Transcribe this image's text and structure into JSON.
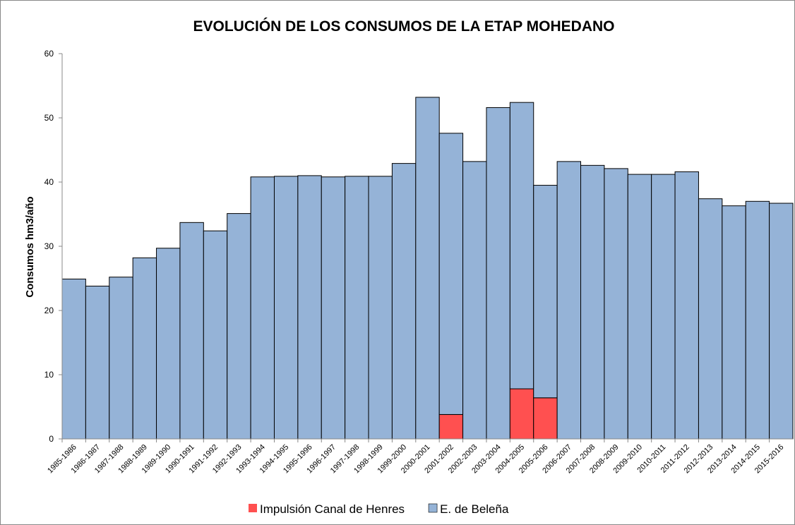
{
  "chart_data": {
    "type": "stacked_bar",
    "title": "EVOLUCIÓN DE LOS CONSUMOS DE LA ETAP MOHEDANO",
    "y_label": "Consumos hm3/año",
    "categories": [
      "1985-1986",
      "1986-1987",
      "1987-1988",
      "1988-1989",
      "1989-1990",
      "1990-1991",
      "1991-1992",
      "1992-1993",
      "1993-1994",
      "1994-1995",
      "1995-1996",
      "1996-1997",
      "1997-1998",
      "1998-1999",
      "1999-2000",
      "2000-2001",
      "2001-2002",
      "2002-2003",
      "2003-2004",
      "2004-2005",
      "2005-2006",
      "2006-2007",
      "2007-2008",
      "2008-2009",
      "2009-2010",
      "2010-2011",
      "2011-2012",
      "2012-2013",
      "2013-2014",
      "2014-2015",
      "2015-2016"
    ],
    "series": [
      {
        "name": "Impulsión Canal de Henres",
        "color": "#ff5050",
        "values": [
          0,
          0,
          0,
          0,
          0,
          0,
          0,
          0,
          0,
          0,
          0,
          0,
          0,
          0,
          0,
          0,
          3.8,
          0,
          0,
          7.8,
          6.4,
          0,
          0,
          0,
          0,
          0,
          0,
          0,
          0,
          0,
          0
        ]
      },
      {
        "name": "E. de Beleña",
        "color": "#95b3d7",
        "values": [
          24.9,
          23.8,
          25.2,
          28.2,
          29.7,
          33.7,
          32.4,
          35.1,
          40.8,
          40.9,
          41.0,
          40.8,
          40.9,
          40.9,
          42.9,
          53.2,
          43.8,
          43.2,
          51.6,
          44.6,
          33.1,
          43.2,
          42.6,
          42.1,
          41.2,
          41.2,
          41.6,
          37.4,
          36.3,
          37.0,
          36.7
        ]
      }
    ],
    "ylim": [
      0,
      60
    ],
    "yticks": [
      0,
      10,
      20,
      30,
      40,
      50,
      60
    ],
    "grid": false,
    "legend": "bottom"
  }
}
